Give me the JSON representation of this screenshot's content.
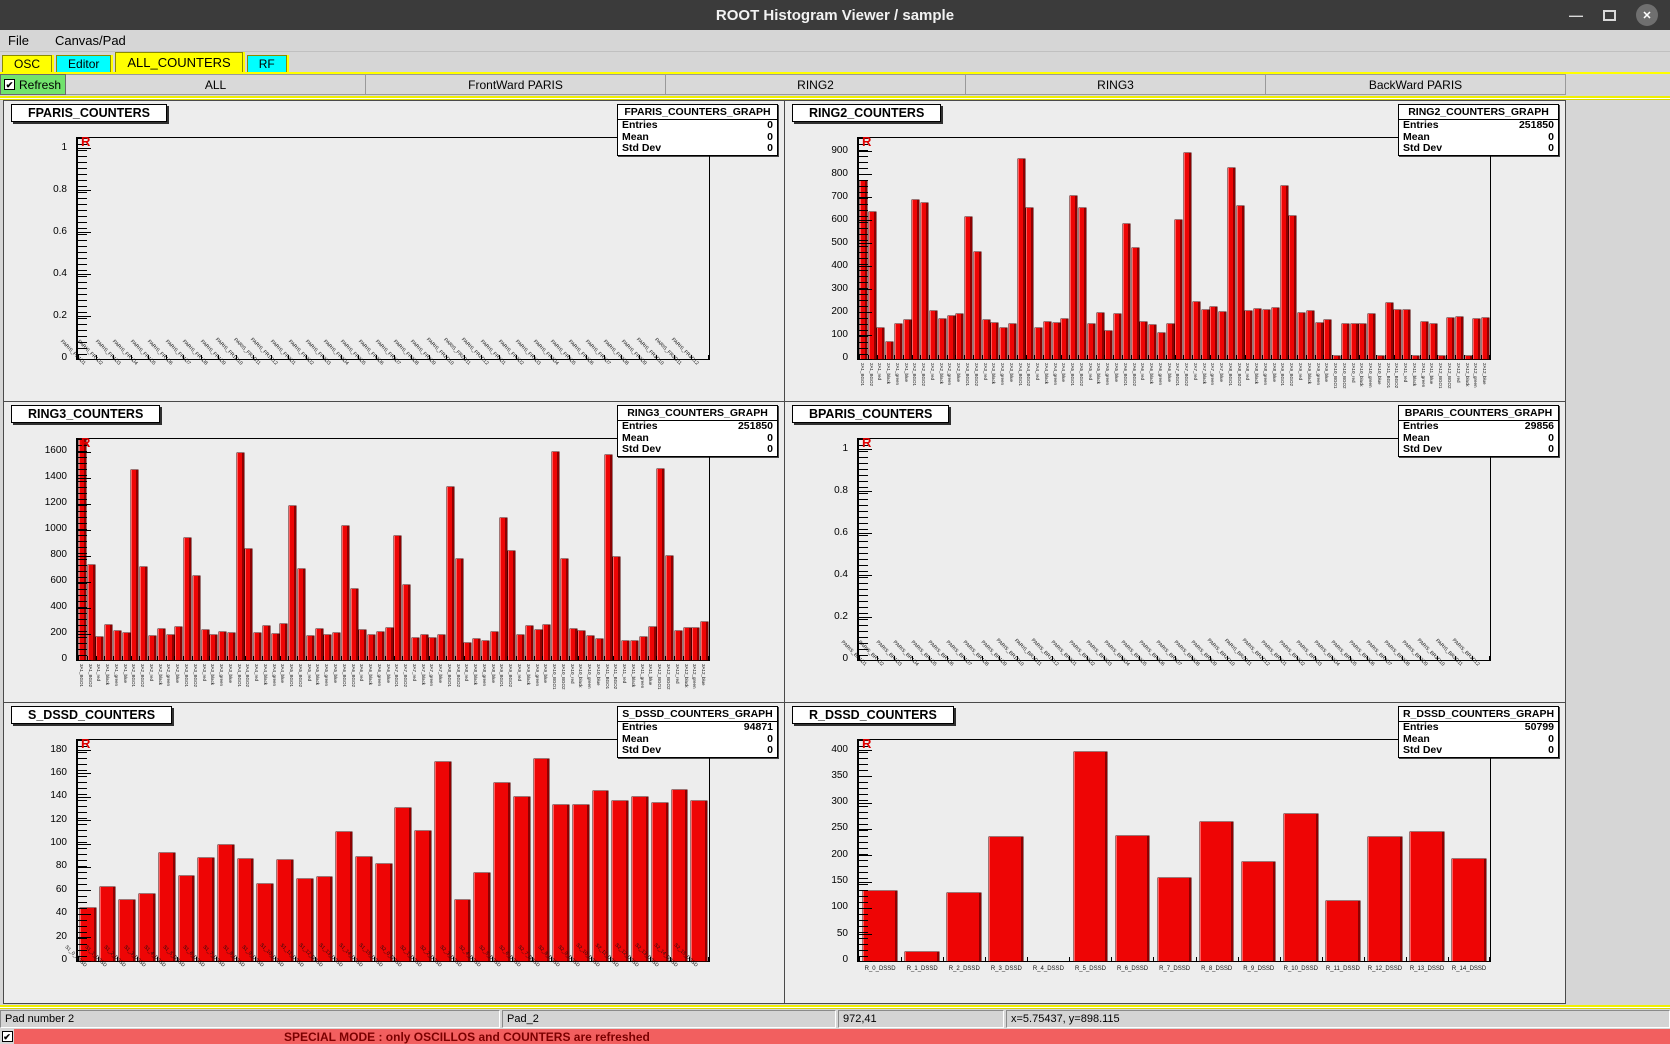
{
  "window": {
    "title": "ROOT Histogram Viewer / sample",
    "controls": {
      "minimize": "—",
      "close": "✕"
    }
  },
  "menu": {
    "items": {
      "file": "File",
      "canvas_pad": "Canvas/Pad"
    }
  },
  "tabs_row1": [
    {
      "label": "OSC",
      "color": "#ffff00",
      "selected": false
    },
    {
      "label": "Editor",
      "color": "#00ffff",
      "selected": false
    },
    {
      "label": "ALL_COUNTERS",
      "color": "#ffff00",
      "selected": true
    },
    {
      "label": "RF",
      "color": "#00ffff",
      "selected": false
    }
  ],
  "tabs_row2": {
    "refresh_label": "Refresh",
    "refresh_checked": true,
    "check_glyph": "✔",
    "segments": [
      "ALL",
      "FrontWard PARIS",
      "RING2",
      "RING3",
      "BackWard PARIS"
    ]
  },
  "stats_labels": {
    "entries": "Entries",
    "mean": "Mean",
    "stddev": "Std Dev"
  },
  "labels": {
    "r_marker": "R"
  },
  "statusbar": {
    "pad_number": "Pad number 2",
    "pad_name": "Pad_2",
    "pixel_coords": "972,41",
    "axis_coords": "x=5.75437, y=898.115"
  },
  "banner": {
    "text": "SPECIAL MODE : only OSCILLOS and COUNTERS are refreshed",
    "checked": true
  },
  "colors": {
    "bar": "#ee0505",
    "bar_edge": "#8f0000",
    "tab_yellow": "#ffff00",
    "tab_cyan": "#00ffff",
    "refresh_green": "#72e36d",
    "banner_bg": "#f25f5f",
    "titlebar": "#3b3b3b"
  },
  "chart_data": [
    {
      "type": "bar",
      "title": "FPARIS_COUNTERS",
      "label_style": "rot45",
      "stats": {
        "name": "FPARIS_COUNTERS_GRAPH",
        "entries": "0",
        "mean": "0",
        "stddev": "0"
      },
      "ylim": [
        0,
        1.05
      ],
      "yticks": [
        0,
        0.2,
        0.4,
        0.6,
        0.8,
        1
      ],
      "categories": [
        "PARIS_FR1D1",
        "PARIS_FR1D2",
        "PARIS_FR1D3",
        "PARIS_FR1D4",
        "PARIS_FR1D5",
        "PARIS_FR1D6",
        "PARIS_FR1D7",
        "PARIS_FR1D8",
        "PARIS_FR1D9",
        "PARIS_FR1D10",
        "PARIS_FR1D11",
        "PARIS_FR1D12",
        "PARIS_FR2D1",
        "PARIS_FR2D2",
        "PARIS_FR2D3",
        "PARIS_FR2D4",
        "PARIS_FR2D5",
        "PARIS_FR2D6",
        "PARIS_FR2D7",
        "PARIS_FR2D8",
        "PARIS_FR2D9",
        "PARIS_FR2D10",
        "PARIS_FR2D11",
        "PARIS_FR2D12",
        "PARIS_FR3D1",
        "PARIS_FR3D2",
        "PARIS_FR3D3",
        "PARIS_FR3D4",
        "PARIS_FR3D5",
        "PARIS_FR3D6",
        "PARIS_FR3D7",
        "PARIS_FR3D8",
        "PARIS_FR3D9",
        "PARIS_FR3D10",
        "PARIS_FR3D11",
        "PARIS_FR3D12"
      ],
      "values": []
    },
    {
      "type": "bar",
      "title": "RING2_COUNTERS",
      "label_style": "vert",
      "stats": {
        "name": "RING2_COUNTERS_GRAPH",
        "entries": "251850",
        "mean": "0",
        "stddev": "0"
      },
      "ylim": [
        0,
        960
      ],
      "yticks": [
        0,
        100,
        200,
        300,
        400,
        500,
        600,
        700,
        800,
        900
      ],
      "categories": [
        "2A1_BGO1",
        "2A1_BGO2",
        "2A1_red",
        "2A1_black",
        "2A1_green",
        "2A1_blue",
        "2A2_BGO1",
        "2A2_BGO2",
        "2A2_red",
        "2A2_black",
        "2A2_green",
        "2A2_blue",
        "2A3_BGO1",
        "2A3_BGO2",
        "2A3_red",
        "2A3_black",
        "2A3_green",
        "2A3_blue",
        "2A4_BGO1",
        "2A4_BGO2",
        "2A4_red",
        "2A4_black",
        "2A4_green",
        "2A4_blue",
        "2A5_BGO1",
        "2A5_BGO2",
        "2A5_red",
        "2A5_black",
        "2A5_green",
        "2A5_blue",
        "2A6_BGO1",
        "2A6_BGO2",
        "2A6_red",
        "2A6_black",
        "2A6_green",
        "2A6_blue",
        "2A7_BGO1",
        "2A7_BGO2",
        "2A7_red",
        "2A7_black",
        "2A7_green",
        "2A7_blue",
        "2A8_BGO1",
        "2A8_BGO2",
        "2A8_red",
        "2A8_black",
        "2A8_green",
        "2A8_blue",
        "2A9_BGO1",
        "2A9_BGO2",
        "2A9_red",
        "2A9_black",
        "2A9_green",
        "2A9_blue",
        "2A10_BGO1",
        "2A10_BGO2",
        "2A10_red",
        "2A10_black",
        "2A10_green",
        "2A10_blue",
        "2A11_BGO1",
        "2A11_BGO2",
        "2A11_red",
        "2A11_black",
        "2A11_green",
        "2A11_blue",
        "2A12_BGO1",
        "2A12_BGO2",
        "2A12_red",
        "2A12_black",
        "2A12_green",
        "2A12_blue"
      ],
      "values": [
        775,
        640,
        135,
        75,
        150,
        168,
        690,
        678,
        208,
        175,
        188,
        195,
        618,
        466,
        168,
        155,
        135,
        152,
        868,
        655,
        135,
        160,
        155,
        172,
        708,
        655,
        152,
        200,
        122,
        195,
        585,
        483,
        160,
        148,
        112,
        152,
        605,
        895,
        248,
        212,
        228,
        205,
        830,
        665,
        208,
        218,
        212,
        222,
        750,
        620,
        198,
        208,
        158,
        168,
        12,
        150,
        150,
        150,
        195,
        12,
        245,
        215,
        215,
        12,
        160,
        150,
        12,
        178,
        183,
        12,
        175,
        178
      ]
    },
    {
      "type": "bar",
      "title": "RING3_COUNTERS",
      "label_style": "vert",
      "stats": {
        "name": "RING3_COUNTERS_GRAPH",
        "entries": "251850",
        "mean": "0",
        "stddev": "0"
      },
      "ylim": [
        0,
        1700
      ],
      "yticks": [
        0,
        200,
        400,
        600,
        800,
        1000,
        1200,
        1400,
        1600
      ],
      "categories": [
        "3A1_BGO1",
        "3A1_BGO2",
        "3A1_red",
        "3A1_black",
        "3A1_green",
        "3A1_blue",
        "3A2_BGO1",
        "3A2_BGO2",
        "3A2_red",
        "3A2_black",
        "3A2_green",
        "3A2_blue",
        "3A3_BGO1",
        "3A3_BGO2",
        "3A3_red",
        "3A3_black",
        "3A3_green",
        "3A3_blue",
        "3A4_BGO1",
        "3A4_BGO2",
        "3A4_red",
        "3A4_black",
        "3A4_green",
        "3A4_blue",
        "3A5_BGO1",
        "3A5_BGO2",
        "3A5_red",
        "3A5_black",
        "3A5_green",
        "3A5_blue",
        "3A6_BGO1",
        "3A6_BGO2",
        "3A6_red",
        "3A6_black",
        "3A6_green",
        "3A6_blue",
        "3A7_BGO1",
        "3A7_BGO2",
        "3A7_red",
        "3A7_black",
        "3A7_green",
        "3A7_blue",
        "3A8_BGO1",
        "3A8_BGO2",
        "3A8_red",
        "3A8_black",
        "3A8_green",
        "3A8_blue",
        "3A9_BGO1",
        "3A9_BGO2",
        "3A9_red",
        "3A9_black",
        "3A9_green",
        "3A9_blue",
        "3A10_BGO1",
        "3A10_BGO2",
        "3A10_red",
        "3A10_black",
        "3A10_green",
        "3A10_blue",
        "3A11_BGO1",
        "3A11_BGO2",
        "3A11_red",
        "3A11_black",
        "3A11_green",
        "3A11_blue",
        "3A12_BGO1",
        "3A12_BGO2",
        "3A12_red",
        "3A12_black",
        "3A12_green",
        "3A12_blue"
      ],
      "values": [
        1700,
        730,
        180,
        270,
        225,
        205,
        1460,
        715,
        185,
        235,
        195,
        255,
        940,
        650,
        230,
        195,
        215,
        205,
        1590,
        855,
        205,
        260,
        200,
        280,
        1185,
        700,
        185,
        240,
        195,
        205,
        1030,
        545,
        230,
        195,
        215,
        245,
        955,
        575,
        170,
        190,
        170,
        195,
        1330,
        775,
        130,
        160,
        145,
        215,
        1090,
        835,
        190,
        260,
        230,
        270,
        1600,
        780,
        240,
        220,
        185,
        165,
        1580,
        790,
        145,
        150,
        175,
        255,
        1470,
        800,
        225,
        245,
        250,
        290
      ]
    },
    {
      "type": "bar",
      "title": "BPARIS_COUNTERS",
      "label_style": "rot45",
      "stats": {
        "name": "BPARIS_COUNTERS_GRAPH",
        "entries": "29856",
        "mean": "0",
        "stddev": "0"
      },
      "ylim": [
        0,
        1.05
      ],
      "yticks": [
        0,
        0.2,
        0.4,
        0.6,
        0.8,
        1
      ],
      "categories": [
        "PARIS_BR1D1",
        "PARIS_BR1D2",
        "PARIS_BR1D3",
        "PARIS_BR1D4",
        "PARIS_BR1D5",
        "PARIS_BR1D6",
        "PARIS_BR1D7",
        "PARIS_BR1D8",
        "PARIS_BR1D9",
        "PARIS_BR1D10",
        "PARIS_BR1D11",
        "PARIS_BR1D12",
        "PARIS_BR2D1",
        "PARIS_BR2D2",
        "PARIS_BR2D3",
        "PARIS_BR2D4",
        "PARIS_BR2D5",
        "PARIS_BR2D6",
        "PARIS_BR2D7",
        "PARIS_BR2D8",
        "PARIS_BR2D9",
        "PARIS_BR2D10",
        "PARIS_BR2D11",
        "PARIS_BR2D12",
        "PARIS_BR3D1",
        "PARIS_BR3D2",
        "PARIS_BR3D3",
        "PARIS_BR3D4",
        "PARIS_BR3D5",
        "PARIS_BR3D6",
        "PARIS_BR3D7",
        "PARIS_BR3D8",
        "PARIS_BR3D9",
        "PARIS_BR3D10",
        "PARIS_BR3D11",
        "PARIS_BR3D12"
      ],
      "values": []
    },
    {
      "type": "bar",
      "title": "S_DSSD_COUNTERS",
      "label_style": "rot45",
      "stats": {
        "name": "S_DSSD_COUNTERS_GRAPH",
        "entries": "94871",
        "mean": "0",
        "stddev": "0"
      },
      "ylim": [
        0,
        189
      ],
      "yticks": [
        0,
        20,
        40,
        60,
        80,
        100,
        120,
        140,
        160,
        180
      ],
      "categories": [
        "S1_0_DSSD",
        "S1_1_DSSD",
        "S1_2_DSSD",
        "S1_3_DSSD",
        "S1_4_DSSD",
        "S1_5_DSSD",
        "S1_6_DSSD",
        "S1_7_DSSD",
        "S1_8_DSSD",
        "S1_9_DSSD",
        "S1_10_DSSD",
        "S1_11_DSSD",
        "S1_12_DSSD",
        "S1_13_DSSD",
        "S1_14_DSSD",
        "S1_15_DSSD",
        "S2_0_DSSD",
        "S2_1_DSSD",
        "S2_2_DSSD",
        "S2_3_DSSD",
        "S2_4_DSSD",
        "S2_5_DSSD",
        "S2_6_DSSD",
        "S2_7_DSSD",
        "S2_8_DSSD",
        "S2_9_DSSD",
        "S2_10_DSSD",
        "S2_11_DSSD",
        "S2_12_DSSD",
        "S2_13_DSSD",
        "S2_14_DSSD",
        "S2_15_DSSD"
      ],
      "values": [
        45,
        63,
        52,
        57,
        92,
        73,
        88,
        99,
        87,
        66,
        86,
        70,
        72,
        110,
        89,
        83,
        131,
        111,
        170,
        52,
        75,
        152,
        140,
        173,
        133,
        133,
        145,
        137,
        140,
        135,
        146,
        137
      ]
    },
    {
      "type": "bar",
      "title": "R_DSSD_COUNTERS",
      "label_style": "horiz",
      "stats": {
        "name": "R_DSSD_COUNTERS_GRAPH",
        "entries": "50799",
        "mean": "0",
        "stddev": "0"
      },
      "ylim": [
        0,
        420
      ],
      "yticks": [
        0,
        50,
        100,
        150,
        200,
        250,
        300,
        350,
        400
      ],
      "categories": [
        "R_0_DSSD",
        "R_1_DSSD",
        "R_2_DSSD",
        "R_3_DSSD",
        "R_4_DSSD",
        "R_5_DSSD",
        "R_6_DSSD",
        "R_7_DSSD",
        "R_8_DSSD",
        "R_9_DSSD",
        "R_10_DSSD",
        "R_11_DSSD",
        "R_12_DSSD",
        "R_13_DSSD",
        "R_14_DSSD"
      ],
      "values": [
        133,
        18,
        130,
        235,
        0,
        398,
        238,
        158,
        265,
        188,
        280,
        115,
        235,
        245,
        193
      ]
    }
  ]
}
